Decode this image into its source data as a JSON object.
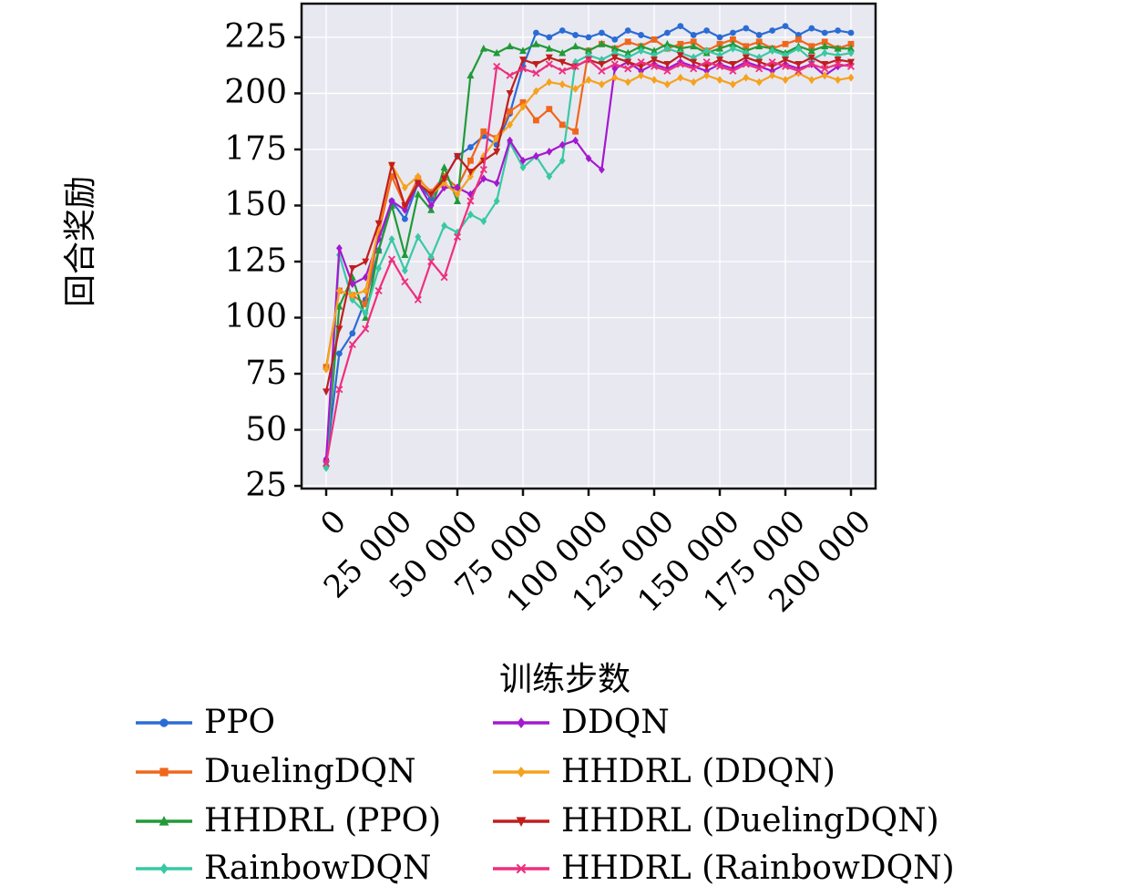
{
  "chart_data": {
    "type": "line",
    "title": "",
    "xlabel": "训练步数",
    "ylabel": "回合奖励",
    "plot_bg": "#e8e8f1",
    "grid_color": "#ffffff",
    "frame_color": "#111111",
    "xlim": [
      -9375,
      209375
    ],
    "ylim": [
      23.8,
      240
    ],
    "x_step": 5000,
    "xticks": [
      0,
      25000,
      50000,
      75000,
      100000,
      125000,
      150000,
      175000,
      200000
    ],
    "xtick_labels": [
      "0",
      "25 000",
      "50 000",
      "75 000",
      "100 000",
      "125 000",
      "150 000",
      "175 000",
      "200 000"
    ],
    "yticks": [
      25,
      50,
      75,
      100,
      125,
      150,
      175,
      200,
      225
    ],
    "ytick_labels": [
      "25",
      "50",
      "75",
      "100",
      "125",
      "150",
      "175",
      "200",
      "225"
    ],
    "legend_position": "below",
    "grid": true,
    "series": [
      {
        "label": "PPO",
        "color": "#2b6cd4",
        "marker": "circle",
        "values": [
          36,
          84,
          93,
          108,
          130,
          152,
          144,
          160,
          153,
          162,
          172,
          176,
          181,
          177,
          191,
          212,
          227,
          225,
          228,
          226,
          225,
          227,
          224,
          228,
          226,
          224,
          227,
          230,
          226,
          228,
          225,
          227,
          229,
          226,
          228,
          230,
          226,
          229,
          227,
          228,
          227
        ]
      },
      {
        "label": "DuelingDQN",
        "color": "#ef671b",
        "marker": "square",
        "values": [
          78,
          112,
          110,
          106,
          138,
          163,
          150,
          162,
          156,
          163,
          158,
          170,
          183,
          180,
          192,
          196,
          188,
          193,
          186,
          183,
          219,
          222,
          220,
          223,
          221,
          224,
          220,
          222,
          223,
          219,
          222,
          224,
          221,
          223,
          220,
          222,
          224,
          221,
          223,
          220,
          222
        ]
      },
      {
        "label": "HHDRL (PPO)",
        "color": "#219a38",
        "marker": "triangle-up",
        "values": [
          35,
          105,
          118,
          100,
          130,
          150,
          128,
          155,
          148,
          167,
          152,
          208,
          220,
          218,
          221,
          219,
          222,
          220,
          218,
          221,
          219,
          222,
          220,
          218,
          221,
          219,
          222,
          220,
          221,
          218,
          220,
          222,
          219,
          221,
          220,
          218,
          221,
          219,
          221,
          220,
          220
        ]
      },
      {
        "label": "RainbowDQN",
        "color": "#38c9a2",
        "marker": "diamond",
        "values": [
          33,
          128,
          108,
          102,
          122,
          135,
          121,
          136,
          127,
          141,
          138,
          146,
          143,
          152,
          178,
          167,
          172,
          163,
          170,
          214,
          217,
          215,
          218,
          216,
          219,
          217,
          220,
          218,
          216,
          219,
          217,
          220,
          218,
          216,
          219,
          217,
          220,
          215,
          218,
          217,
          218
        ]
      },
      {
        "label": "DDQN",
        "color": "#a518cf",
        "marker": "diamond",
        "values": [
          37,
          131,
          115,
          118,
          135,
          152,
          148,
          160,
          150,
          158,
          158,
          155,
          162,
          160,
          179,
          170,
          172,
          174,
          177,
          179,
          171,
          166,
          211,
          214,
          210,
          213,
          211,
          214,
          212,
          210,
          213,
          211,
          214,
          212,
          210,
          213,
          211,
          213,
          208,
          212,
          213
        ]
      },
      {
        "label": "HHDRL (DDQN)",
        "color": "#f5a21d",
        "marker": "diamond",
        "values": [
          77,
          112,
          110,
          112,
          140,
          168,
          158,
          163,
          155,
          160,
          155,
          163,
          172,
          180,
          186,
          194,
          201,
          205,
          204,
          202,
          206,
          204,
          207,
          205,
          208,
          206,
          204,
          207,
          205,
          208,
          206,
          204,
          207,
          205,
          208,
          206,
          209,
          206,
          208,
          206,
          207
        ]
      },
      {
        "label": "HHDRL (DuelingDQN)",
        "color": "#c11e1e",
        "marker": "triangle-down",
        "values": [
          67,
          95,
          122,
          125,
          142,
          168,
          150,
          160,
          155,
          162,
          172,
          165,
          170,
          174,
          200,
          215,
          213,
          216,
          214,
          212,
          215,
          213,
          216,
          214,
          212,
          215,
          213,
          217,
          214,
          212,
          215,
          213,
          216,
          214,
          212,
          215,
          213,
          216,
          213,
          215,
          214
        ]
      },
      {
        "label": "HHDRL (RainbowDQN)",
        "color": "#ee2f7d",
        "marker": "x",
        "values": [
          35,
          68,
          88,
          95,
          112,
          126,
          116,
          108,
          125,
          118,
          136,
          152,
          166,
          212,
          208,
          211,
          209,
          213,
          210,
          212,
          215,
          210,
          213,
          211,
          214,
          212,
          210,
          213,
          211,
          214,
          212,
          210,
          213,
          211,
          214,
          212,
          210,
          213,
          211,
          213,
          212
        ]
      }
    ]
  }
}
